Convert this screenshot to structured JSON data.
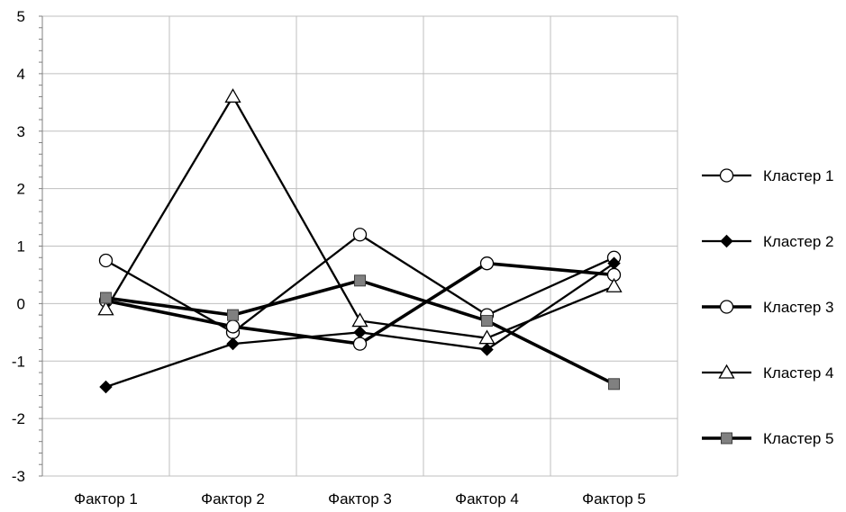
{
  "chart_data": {
    "type": "line",
    "title": "",
    "xlabel": "",
    "ylabel": "",
    "categories": [
      "Фактор 1",
      "Фактор 2",
      "Фактор  3",
      "Фактор 4",
      "Фактор 5"
    ],
    "ylim": [
      -3,
      5
    ],
    "yticks": [
      5,
      4,
      3,
      2,
      1,
      0,
      -1,
      -2,
      -3
    ],
    "grid": true,
    "legend_position": "right",
    "series": [
      {
        "name": "Кластер 1",
        "values": [
          0.75,
          -0.5,
          1.2,
          -0.2,
          0.8
        ],
        "marker": "circle-open",
        "line_style": "medium"
      },
      {
        "name": "Кластер 2",
        "values": [
          -1.45,
          -0.7,
          -0.5,
          -0.8,
          0.7
        ],
        "marker": "diamond-filled",
        "line_style": "medium"
      },
      {
        "name": "Кластер 3",
        "values": [
          0.05,
          -0.4,
          -0.7,
          0.7,
          0.5
        ],
        "marker": "circle-open",
        "line_style": "thick"
      },
      {
        "name": "Кластер 4",
        "values": [
          -0.1,
          3.6,
          -0.3,
          -0.6,
          0.3
        ],
        "marker": "triangle-open",
        "line_style": "medium"
      },
      {
        "name": "Кластер 5",
        "values": [
          0.1,
          -0.2,
          0.4,
          -0.3,
          -1.4
        ],
        "marker": "square-gray",
        "line_style": "thick"
      }
    ],
    "colors": {
      "line": "#000000",
      "grid": "#bfbfbf",
      "square_fill": "#808080"
    }
  }
}
